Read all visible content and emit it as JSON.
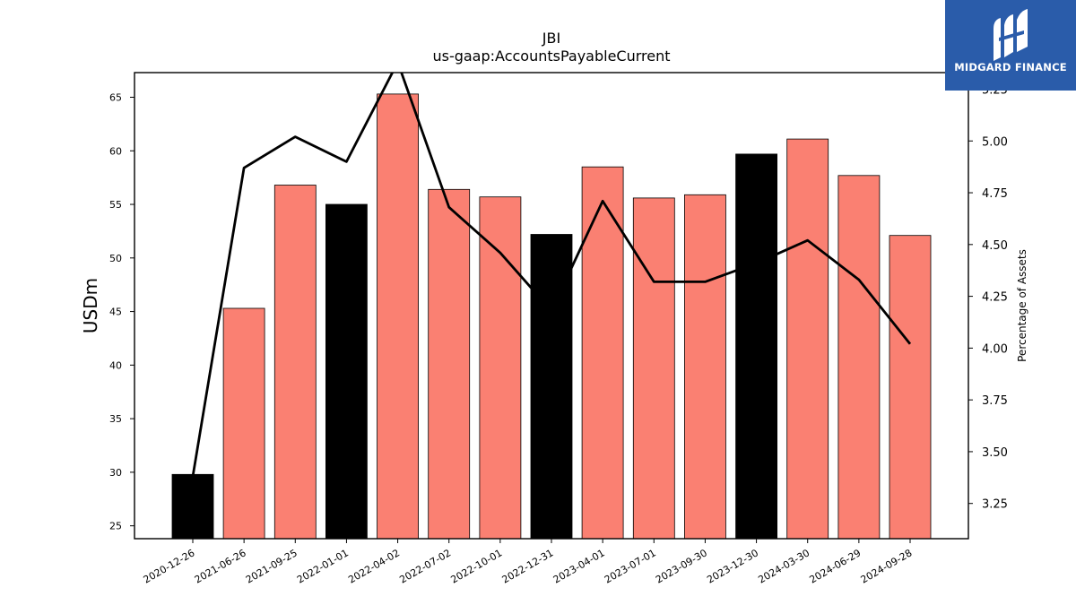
{
  "logo": {
    "text": "MIDGARD FINANCE",
    "icon": "midgard-logo-icon",
    "background": "#2a5caa"
  },
  "chart_data": {
    "type": "bar",
    "title": "JBI",
    "subtitle": "us-gaap:AccountsPayableCurrent",
    "ylabel": "USDm",
    "ylabel_right": "Percentage of Assets",
    "categories": [
      "2020-12-26",
      "2021-06-26",
      "2021-09-25",
      "2022-01-01",
      "2022-04-02",
      "2022-07-02",
      "2022-10-01",
      "2022-12-31",
      "2023-04-01",
      "2023-07-01",
      "2023-09-30",
      "2023-12-30",
      "2024-03-30",
      "2024-06-29",
      "2024-09-28"
    ],
    "series": [
      {
        "type": "bar",
        "axis": "left",
        "values": [
          29.8,
          45.3,
          56.8,
          55.0,
          65.3,
          56.4,
          55.7,
          52.2,
          58.5,
          55.6,
          55.9,
          59.7,
          61.1,
          57.7,
          52.1
        ],
        "colors": [
          "#000000",
          "#fa8072",
          "#fa8072",
          "#000000",
          "#fa8072",
          "#fa8072",
          "#fa8072",
          "#000000",
          "#fa8072",
          "#fa8072",
          "#fa8072",
          "#000000",
          "#fa8072",
          "#fa8072",
          "#fa8072"
        ]
      },
      {
        "type": "line",
        "axis": "right",
        "values": [
          3.38,
          4.87,
          5.02,
          4.9,
          5.38,
          4.68,
          4.46,
          4.18,
          4.71,
          4.32,
          4.32,
          4.41,
          4.52,
          4.33,
          4.02
        ],
        "color": "#000000"
      }
    ],
    "ylim": [
      23.8,
      67.3
    ],
    "yticks": [
      25,
      30,
      35,
      40,
      45,
      50,
      55,
      60,
      65
    ],
    "ylim_right": [
      3.08,
      5.33
    ],
    "yticks_right": [
      "3.25",
      "3.50",
      "3.75",
      "4.00",
      "4.25",
      "4.50",
      "4.75",
      "5.00",
      "5.25"
    ],
    "grid": false,
    "legend": "none"
  }
}
